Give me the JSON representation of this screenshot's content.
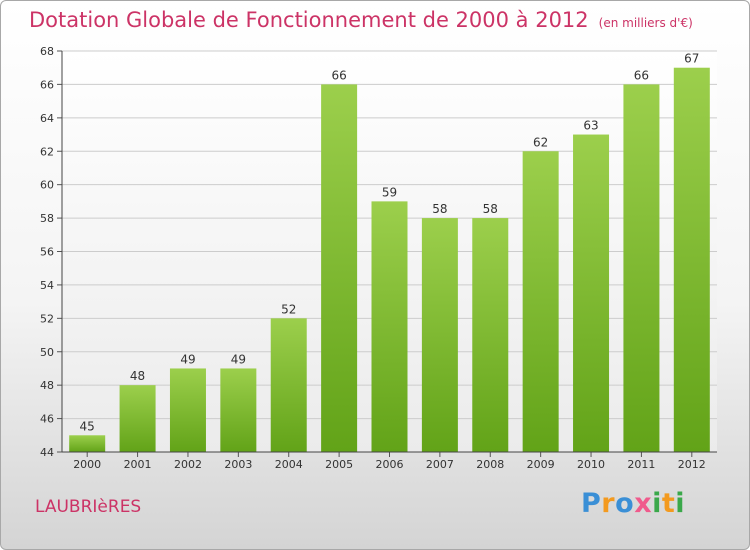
{
  "header": {
    "title": "Dotation Globale de Fonctionnement de 2000 à 2012",
    "subtitle": "(en milliers d'€)"
  },
  "footer": {
    "town": "LAUBRIèRES",
    "logo_letters": [
      "P",
      "r",
      "o",
      "x",
      "i",
      "t",
      "i"
    ]
  },
  "colors": {
    "title": "#cc3366",
    "bar_top": "#9ccf4c",
    "bar_bottom": "#62a318",
    "grid": "#cccccc",
    "logo": [
      "#3a8fd6",
      "#f39a1f",
      "#3a8fd6",
      "#f05a8c",
      "#3aa84a",
      "#f39a1f",
      "#3aa84a"
    ]
  },
  "chart_data": {
    "type": "bar",
    "title": "Dotation Globale de Fonctionnement de 2000 à 2012",
    "subtitle": "(en milliers d'€)",
    "xlabel": "",
    "ylabel": "",
    "categories": [
      "2000",
      "2001",
      "2002",
      "2003",
      "2004",
      "2005",
      "2006",
      "2007",
      "2008",
      "2009",
      "2010",
      "2011",
      "2012"
    ],
    "values": [
      45,
      48,
      49,
      49,
      52,
      66,
      59,
      58,
      58,
      62,
      63,
      66,
      67
    ],
    "ylim": [
      44,
      68
    ],
    "yticks": [
      44,
      46,
      48,
      50,
      52,
      54,
      56,
      58,
      60,
      62,
      64,
      66,
      68
    ],
    "grid": true,
    "data_labels": true
  }
}
